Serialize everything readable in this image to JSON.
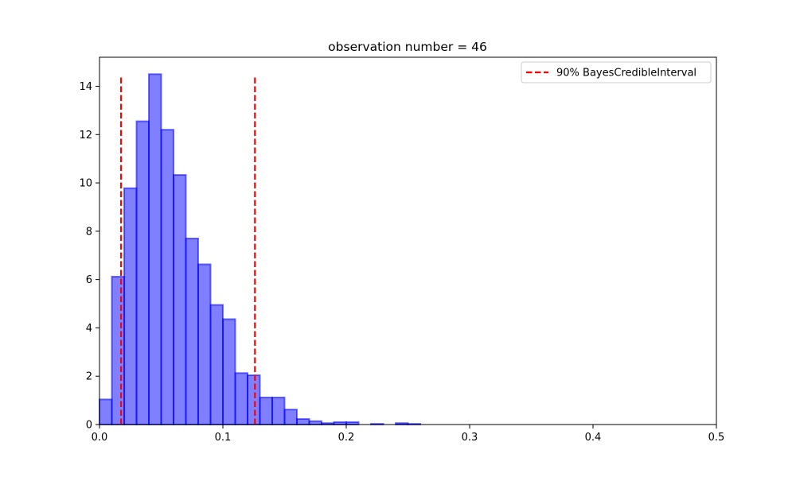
{
  "chart_data": {
    "type": "bar",
    "title": "observation number = 46",
    "xlabel": "",
    "ylabel": "",
    "xlim": [
      0,
      0.5
    ],
    "ylim": [
      0,
      15.2
    ],
    "xticks": [
      0.0,
      0.1,
      0.2,
      0.3,
      0.4,
      0.5
    ],
    "xtick_labels": [
      "0.0",
      "0.1",
      "0.2",
      "0.3",
      "0.4",
      "0.5"
    ],
    "yticks": [
      0,
      2,
      4,
      6,
      8,
      10,
      12,
      14
    ],
    "ytick_labels": [
      "0",
      "2",
      "4",
      "6",
      "8",
      "10",
      "12",
      "14"
    ],
    "grid": false,
    "histogram": {
      "bin_width": 0.01,
      "bins": [
        {
          "x0": 0.0,
          "height": 1.04
        },
        {
          "x0": 0.01,
          "height": 6.12
        },
        {
          "x0": 0.02,
          "height": 9.78
        },
        {
          "x0": 0.03,
          "height": 12.55
        },
        {
          "x0": 0.04,
          "height": 14.5
        },
        {
          "x0": 0.05,
          "height": 12.2
        },
        {
          "x0": 0.06,
          "height": 10.33
        },
        {
          "x0": 0.07,
          "height": 7.7
        },
        {
          "x0": 0.08,
          "height": 6.63
        },
        {
          "x0": 0.09,
          "height": 4.95
        },
        {
          "x0": 0.1,
          "height": 4.36
        },
        {
          "x0": 0.11,
          "height": 2.13
        },
        {
          "x0": 0.12,
          "height": 2.04
        },
        {
          "x0": 0.13,
          "height": 1.12
        },
        {
          "x0": 0.14,
          "height": 1.12
        },
        {
          "x0": 0.15,
          "height": 0.62
        },
        {
          "x0": 0.16,
          "height": 0.23
        },
        {
          "x0": 0.17,
          "height": 0.14
        },
        {
          "x0": 0.18,
          "height": 0.06
        },
        {
          "x0": 0.19,
          "height": 0.1
        },
        {
          "x0": 0.2,
          "height": 0.1
        },
        {
          "x0": 0.22,
          "height": 0.03
        },
        {
          "x0": 0.24,
          "height": 0.06
        },
        {
          "x0": 0.25,
          "height": 0.03
        }
      ],
      "fill_color": "#0000ff",
      "fill_opacity": 0.5,
      "edge_color": "#0000ff",
      "edge_opacity": 0.55
    },
    "vlines": [
      {
        "x": 0.0175,
        "ymin": 0,
        "ymax": 14.4,
        "color": "#ff0000",
        "style": "dashed"
      },
      {
        "x": 0.126,
        "ymin": 0,
        "ymax": 14.4,
        "color": "#ff0000",
        "style": "dashed"
      }
    ],
    "legend": {
      "placement": "top-right",
      "entries": [
        {
          "label": "90% BayesCredibleInterval",
          "color": "#ff0000",
          "style": "dashed"
        }
      ]
    }
  }
}
